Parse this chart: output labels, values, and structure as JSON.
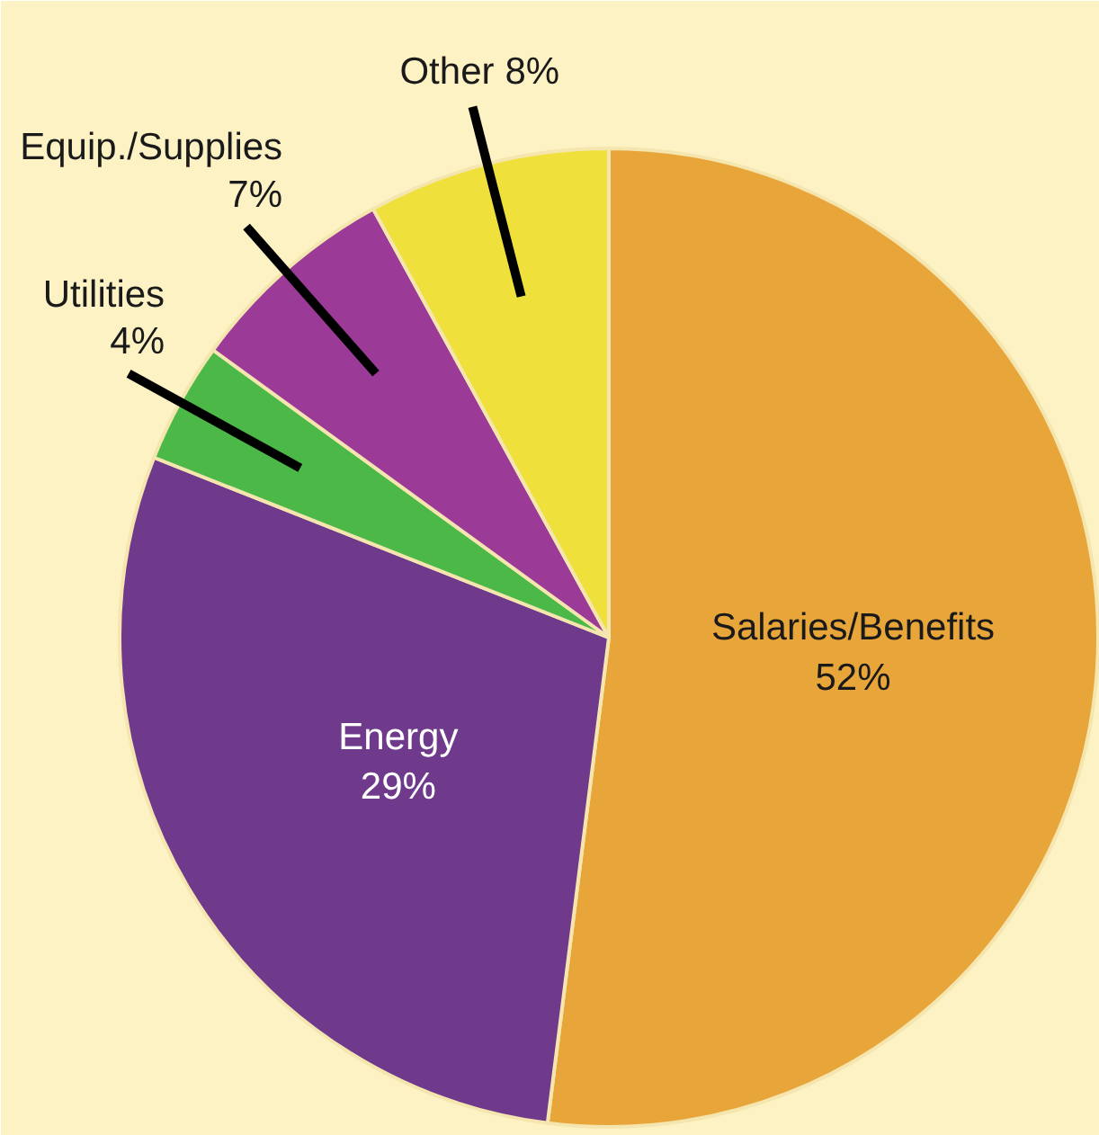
{
  "chart_data": {
    "type": "pie",
    "categories": [
      "Salaries/Benefits",
      "Energy",
      "Utilities",
      "Equip./Supplies",
      "Other"
    ],
    "values": [
      52,
      29,
      4,
      7,
      8
    ],
    "colors": [
      "#e8a53a",
      "#6f3a8c",
      "#4cb848",
      "#9c3a98",
      "#efe03c"
    ],
    "value_labels": [
      "52%",
      "29%",
      "4%",
      "7%",
      "8%"
    ]
  }
}
